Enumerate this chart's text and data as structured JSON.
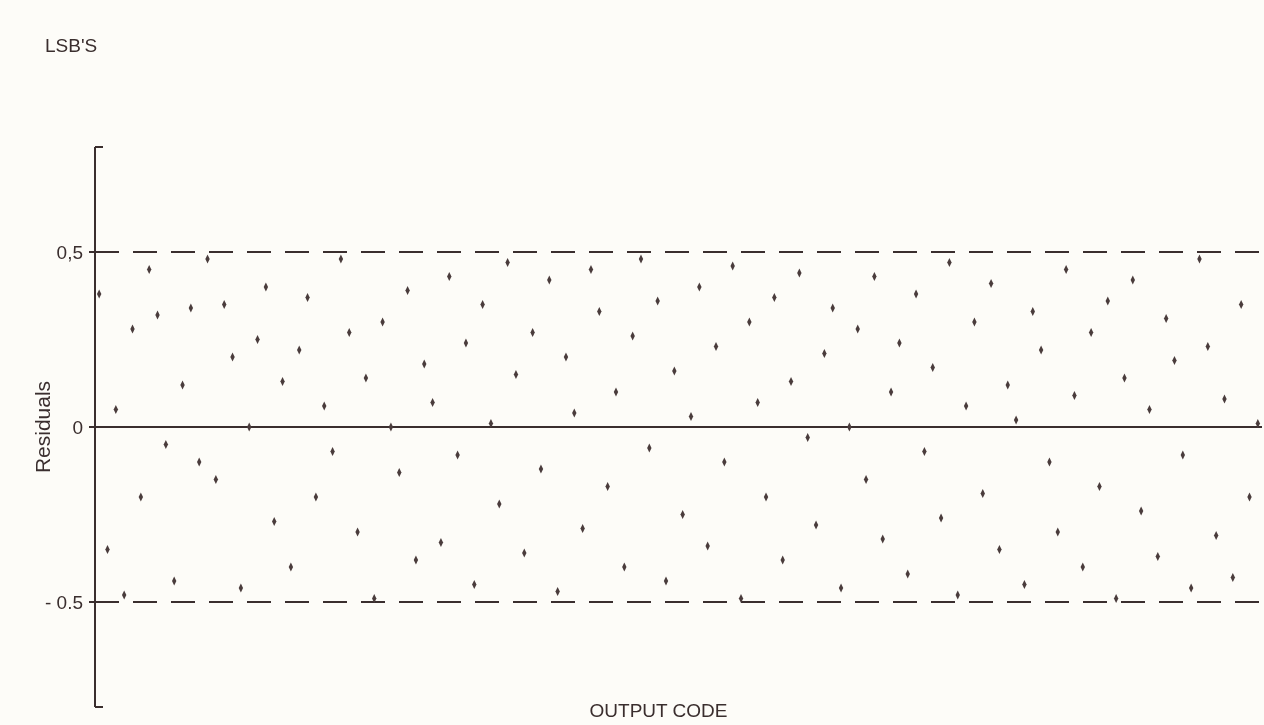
{
  "chart_data": {
    "type": "scatter",
    "ylabel": "Residuals",
    "xlabel": "OUTPUT CODE",
    "title": "LSB'S",
    "categories": [
      null,
      null,
      null,
      null,
      null,
      null,
      null,
      null,
      null,
      null,
      null,
      null,
      null,
      null,
      null,
      null,
      null,
      null,
      null,
      null,
      null,
      null,
      null,
      null,
      null,
      null,
      null,
      null,
      null,
      null,
      null,
      null,
      null,
      null,
      null,
      null,
      null,
      null,
      null,
      null,
      null,
      null,
      null,
      null,
      null,
      null,
      null,
      null,
      null,
      null,
      null,
      null,
      null,
      null,
      null,
      null,
      null,
      null,
      null,
      null,
      null,
      null,
      null,
      null,
      null,
      null,
      null,
      null,
      null,
      null,
      null,
      null,
      null,
      null,
      null,
      null,
      null,
      null,
      null,
      null,
      null,
      null,
      null,
      null,
      null,
      null,
      null,
      null,
      null,
      null,
      null,
      null,
      null,
      null,
      null,
      null,
      null,
      null,
      null,
      null,
      null,
      null,
      null,
      null,
      null,
      null,
      null,
      null,
      null,
      null,
      null,
      null,
      null,
      null,
      null,
      null,
      null,
      null,
      null,
      null,
      null,
      null,
      null,
      null,
      null,
      null,
      null,
      null,
      null,
      null,
      null,
      null,
      null,
      null,
      null,
      null,
      null,
      null,
      null,
      null
    ],
    "series": [
      {
        "color": "#4a3c3c",
        "values": [
          0.38,
          -0.35,
          0.05,
          -0.48,
          0.28,
          -0.2,
          0.45,
          0.32,
          -0.05,
          -0.44,
          0.12,
          0.34,
          -0.1,
          0.48,
          -0.15,
          0.35,
          0.2,
          -0.46,
          0.0,
          0.25,
          0.4,
          -0.27,
          0.13,
          -0.4,
          0.22,
          0.37,
          -0.2,
          0.06,
          -0.07,
          0.48,
          0.27,
          -0.3,
          0.14,
          -0.49,
          0.3,
          0.0,
          -0.13,
          0.39,
          -0.38,
          0.18,
          0.07,
          -0.33,
          0.43,
          -0.08,
          0.24,
          -0.45,
          0.35,
          0.01,
          -0.22,
          0.47,
          0.15,
          -0.36,
          0.27,
          -0.12,
          0.42,
          -0.47,
          0.2,
          0.04,
          -0.29,
          0.45,
          0.33,
          -0.17,
          0.1,
          -0.4,
          0.26,
          0.48,
          -0.06,
          0.36,
          -0.44,
          0.16,
          -0.25,
          0.03,
          0.4,
          -0.34,
          0.23,
          -0.1,
          0.46,
          -0.49,
          0.3,
          0.07,
          -0.2,
          0.37,
          -0.38,
          0.13,
          0.44,
          -0.03,
          -0.28,
          0.21,
          0.34,
          -0.46,
          0.0,
          0.28,
          -0.15,
          0.43,
          -0.32,
          0.1,
          0.24,
          -0.42,
          0.38,
          -0.07,
          0.17,
          -0.26,
          0.47,
          -0.48,
          0.06,
          0.3,
          -0.19,
          0.41,
          -0.35,
          0.12,
          0.02,
          -0.45,
          0.33,
          0.22,
          -0.1,
          -0.3,
          0.45,
          0.09,
          -0.4,
          0.27,
          -0.17,
          0.36,
          -0.49,
          0.14,
          0.42,
          -0.24,
          0.05,
          -0.37,
          0.31,
          0.19,
          -0.08,
          -0.46,
          0.48,
          0.23,
          -0.31,
          0.08,
          -0.43,
          0.35,
          -0.2,
          0.01
        ]
      }
    ],
    "ylim": [
      -0.8,
      0.8
    ],
    "yticks": [
      {
        "value": 0.5,
        "label": "0,5"
      },
      0,
      {
        "value": -0.5,
        "label": "- 0.5"
      }
    ],
    "ref_lines": [
      {
        "axis": "y",
        "value": 0.5,
        "line_style": "dashed",
        "color": "#3a2e2e"
      },
      {
        "axis": "y",
        "value": 0,
        "line_style": "solid",
        "color": "#3a2e2e"
      },
      {
        "axis": "y",
        "value": -0.5,
        "line_style": "dashed",
        "color": "#3a2e2e"
      }
    ],
    "grid": false,
    "marker": "diamond"
  }
}
